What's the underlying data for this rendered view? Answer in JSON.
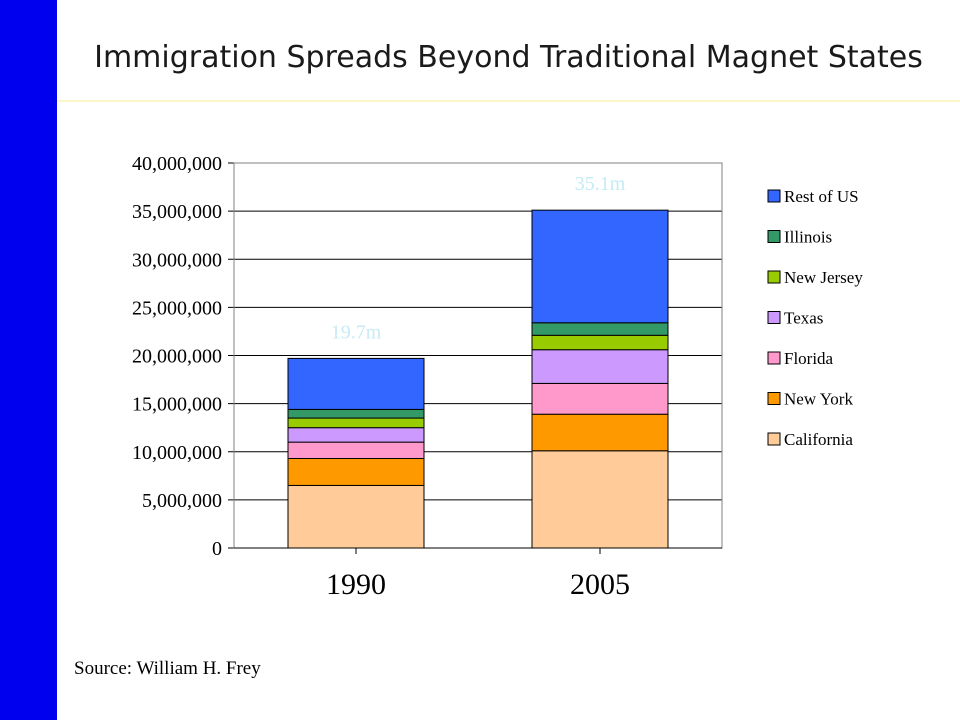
{
  "slide": {
    "title": "Immigration Spreads Beyond Traditional  Magnet States",
    "source": "Source: William H. Frey"
  },
  "colors": {
    "side_bar": "#0000ee",
    "rule": "#fbf7c8"
  },
  "chart_data": {
    "type": "bar",
    "stacked": true,
    "categories": [
      "1990",
      "2005"
    ],
    "ylim": [
      0,
      40000000
    ],
    "yticks": [
      0,
      5000000,
      10000000,
      15000000,
      20000000,
      25000000,
      30000000,
      35000000,
      40000000
    ],
    "ytick_labels": [
      "0",
      "5,000,000",
      "10,000,000",
      "15,000,000",
      "20,000,000",
      "25,000,000",
      "30,000,000",
      "35,000,000",
      "40,000,000"
    ],
    "grid": true,
    "legend_position": "right",
    "series": [
      {
        "name": "California",
        "color": "#ffcc99",
        "values": [
          6500000,
          10100000
        ]
      },
      {
        "name": "New York",
        "color": "#ff9900",
        "values": [
          2800000,
          3800000
        ]
      },
      {
        "name": "Florida",
        "color": "#ff99cc",
        "values": [
          1700000,
          3200000
        ]
      },
      {
        "name": "Texas",
        "color": "#cc99ff",
        "values": [
          1500000,
          3500000
        ]
      },
      {
        "name": "New Jersey",
        "color": "#99cc00",
        "values": [
          1000000,
          1500000
        ]
      },
      {
        "name": "Illinois",
        "color": "#339966",
        "values": [
          900000,
          1300000
        ]
      },
      {
        "name": "Rest of US",
        "color": "#3366ff",
        "values": [
          5300000,
          11700000
        ]
      }
    ],
    "totals": [
      {
        "label": "19.7m",
        "value": 19700000
      },
      {
        "label": "35.1m",
        "value": 35100000
      }
    ]
  }
}
